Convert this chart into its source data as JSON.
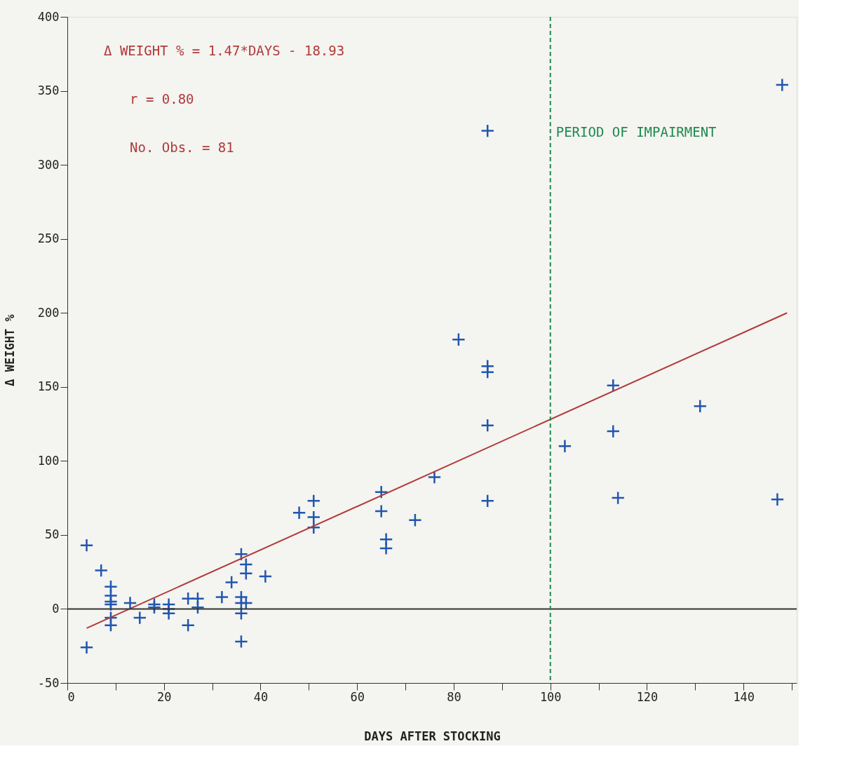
{
  "chart_data": {
    "type": "scatter",
    "xlabel": "DAYS AFTER STOCKING",
    "ylabel": "Δ WEIGHT %",
    "annotations": [
      "Δ WEIGHT % = 1.47*DAYS - 18.93",
      "r = 0.80",
      "No. Obs. = 81"
    ],
    "xlim": [
      0,
      151
    ],
    "ylim": [
      -50,
      400
    ],
    "xticks": [
      0,
      {
        "value": 10,
        "label": null
      },
      20,
      {
        "value": 30,
        "label": null
      },
      40,
      {
        "value": 50,
        "label": null
      },
      60,
      {
        "value": 70,
        "label": null
      },
      80,
      {
        "value": 90,
        "label": null
      },
      100,
      {
        "value": 110,
        "label": null
      },
      120,
      {
        "value": 130,
        "label": null
      },
      140,
      {
        "value": 150,
        "label": null
      }
    ],
    "yticks": [
      -50,
      0,
      50,
      100,
      150,
      200,
      250,
      300,
      350,
      400
    ],
    "grid": false,
    "marker": "cross",
    "series": [
      {
        "color": "#2156b0",
        "x": [
          4,
          4,
          7,
          9,
          9,
          9,
          9,
          9,
          9,
          13,
          15,
          18,
          18,
          21,
          21,
          21,
          25,
          25,
          27,
          27,
          32,
          34,
          36,
          36,
          36,
          36,
          36,
          37,
          37,
          37,
          41,
          48,
          51,
          51,
          51,
          65,
          65,
          66,
          66,
          72,
          76,
          81,
          87,
          87,
          87,
          87,
          87,
          103,
          113,
          113,
          114,
          131,
          147,
          148
        ],
        "values": [
          43,
          -26,
          26,
          15,
          9,
          5,
          3,
          -6,
          -11,
          4,
          -6,
          3,
          1,
          3,
          0,
          -3,
          7,
          -11,
          7,
          1,
          8,
          18,
          37,
          8,
          4,
          -3,
          -22,
          30,
          24,
          4,
          22,
          65,
          73,
          62,
          55,
          79,
          66,
          47,
          41,
          60,
          89,
          182,
          323,
          164,
          160,
          124,
          73,
          110,
          151,
          120,
          75,
          137,
          74,
          354
        ]
      },
      {
        "type": "line",
        "color": "#b03a3a",
        "line_style": "solid",
        "marker": "none",
        "x": [
          4,
          149
        ],
        "values": [
          -13,
          200
        ]
      }
    ],
    "ref_lines": [
      {
        "axis": "y",
        "value": 0,
        "color": "#333333",
        "line_style": "solid"
      },
      {
        "axis": "x",
        "value": 100,
        "label": "PERIOD OF IMPAIRMENT",
        "color": "#1e8a50",
        "line_style": "dashed"
      }
    ]
  }
}
